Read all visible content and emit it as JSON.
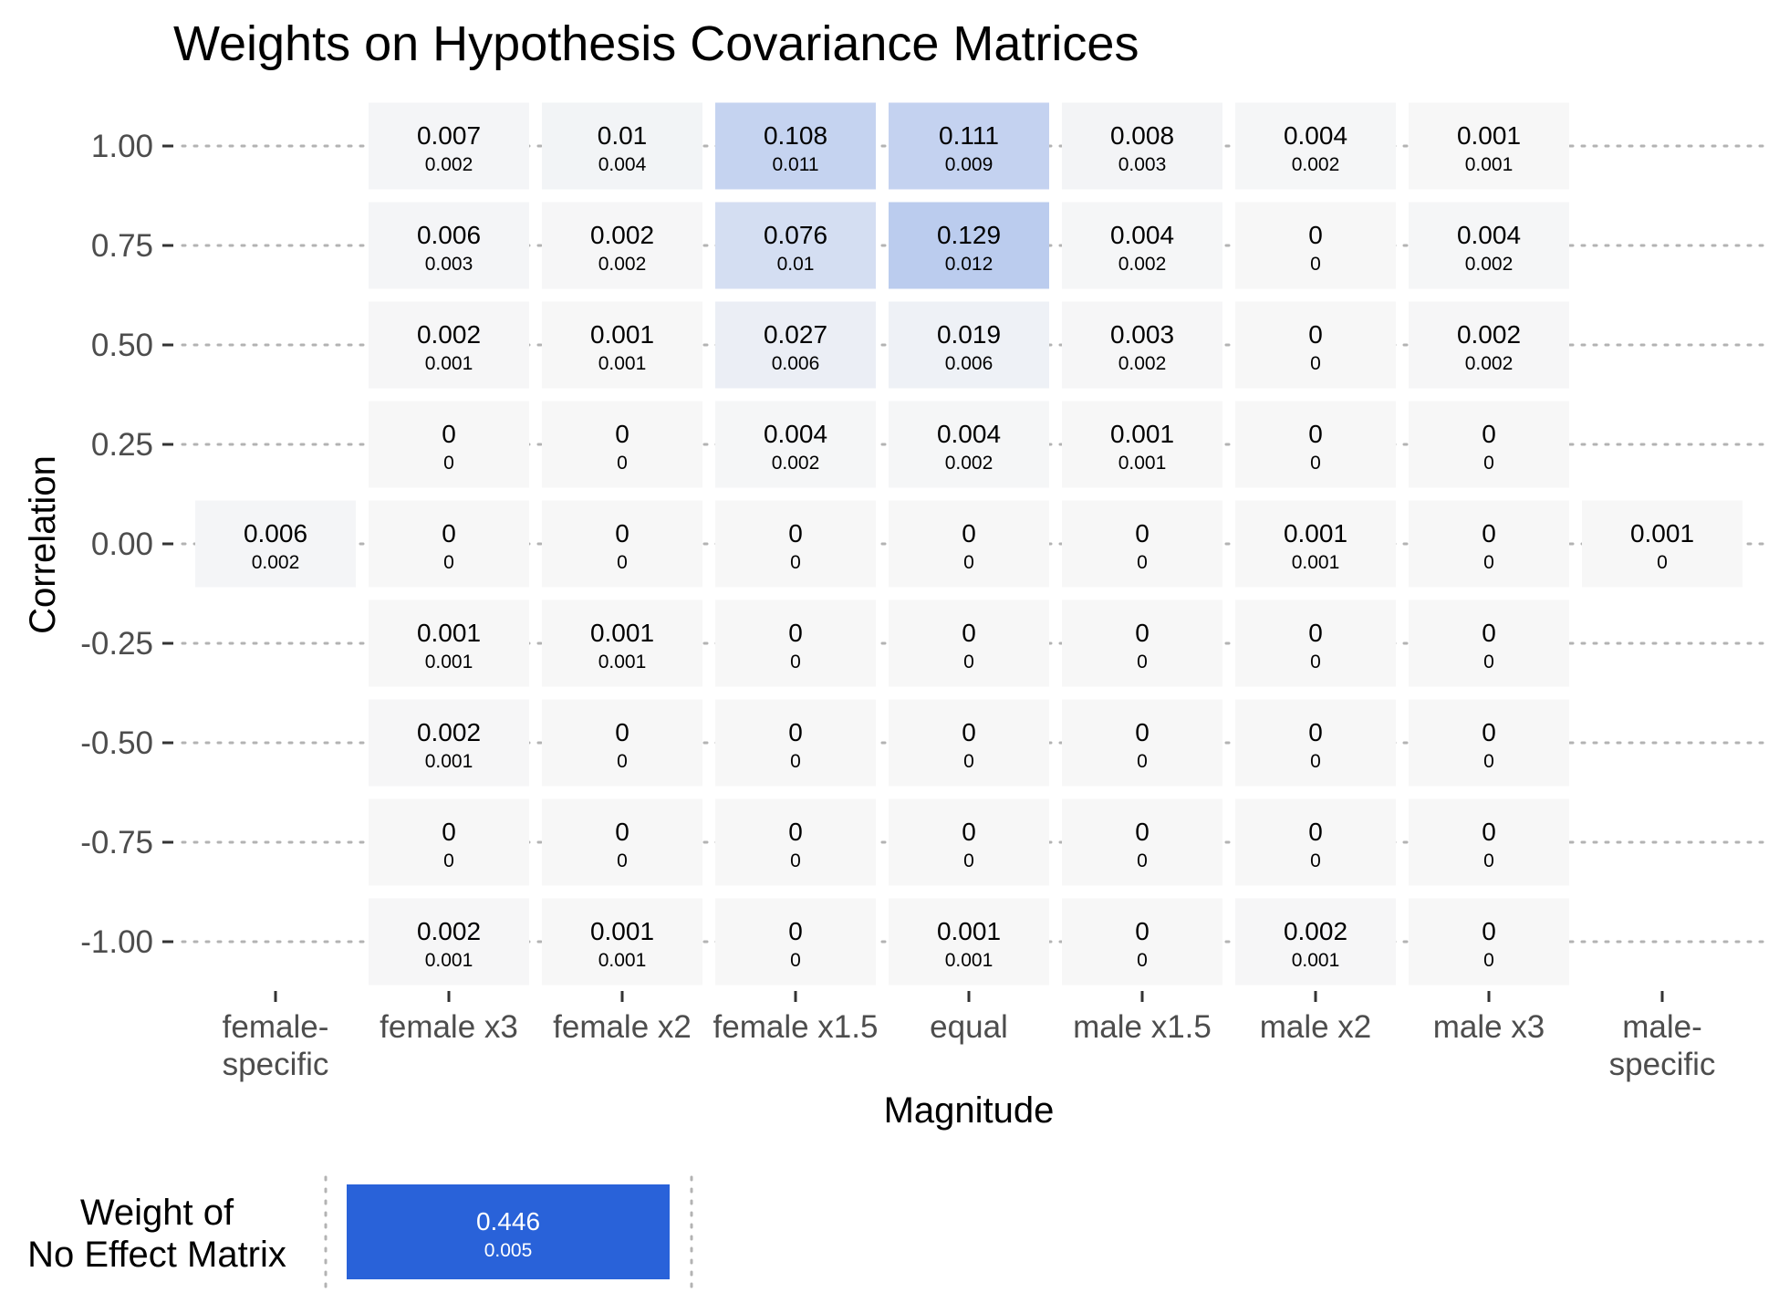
{
  "chart_data": {
    "type": "heatmap",
    "title": "Weights on Hypothesis Covariance Matrices",
    "xlabel": "Magnitude",
    "ylabel": "Correlation",
    "x_categories": [
      "female-\nspecific",
      "female x3",
      "female x2",
      "female x1.5",
      "equal",
      "male x1.5",
      "male x2",
      "male x3",
      "male-\nspecific"
    ],
    "y_categories": [
      "1.00",
      "0.75",
      "0.50",
      "0.25",
      "0.00",
      "-0.25",
      "-0.50",
      "-0.75",
      "-1.00"
    ],
    "cells": [
      {
        "x": "female-\nspecific",
        "y": "0.00",
        "mean": "0.006",
        "se": "0.002",
        "value": 0.006
      },
      {
        "x": "female x3",
        "y": "1.00",
        "mean": "0.007",
        "se": "0.002",
        "value": 0.007
      },
      {
        "x": "female x3",
        "y": "0.75",
        "mean": "0.006",
        "se": "0.003",
        "value": 0.006
      },
      {
        "x": "female x3",
        "y": "0.50",
        "mean": "0.002",
        "se": "0.001",
        "value": 0.002
      },
      {
        "x": "female x3",
        "y": "0.25",
        "mean": "0",
        "se": "0",
        "value": 0
      },
      {
        "x": "female x3",
        "y": "0.00",
        "mean": "0",
        "se": "0",
        "value": 0
      },
      {
        "x": "female x3",
        "y": "-0.25",
        "mean": "0.001",
        "se": "0.001",
        "value": 0.001
      },
      {
        "x": "female x3",
        "y": "-0.50",
        "mean": "0.002",
        "se": "0.001",
        "value": 0.002
      },
      {
        "x": "female x3",
        "y": "-0.75",
        "mean": "0",
        "se": "0",
        "value": 0
      },
      {
        "x": "female x3",
        "y": "-1.00",
        "mean": "0.002",
        "se": "0.001",
        "value": 0.002
      },
      {
        "x": "female x2",
        "y": "1.00",
        "mean": "0.01",
        "se": "0.004",
        "value": 0.01
      },
      {
        "x": "female x2",
        "y": "0.75",
        "mean": "0.002",
        "se": "0.002",
        "value": 0.002
      },
      {
        "x": "female x2",
        "y": "0.50",
        "mean": "0.001",
        "se": "0.001",
        "value": 0.001
      },
      {
        "x": "female x2",
        "y": "0.25",
        "mean": "0",
        "se": "0",
        "value": 0
      },
      {
        "x": "female x2",
        "y": "0.00",
        "mean": "0",
        "se": "0",
        "value": 0
      },
      {
        "x": "female x2",
        "y": "-0.25",
        "mean": "0.001",
        "se": "0.001",
        "value": 0.001
      },
      {
        "x": "female x2",
        "y": "-0.50",
        "mean": "0",
        "se": "0",
        "value": 0
      },
      {
        "x": "female x2",
        "y": "-0.75",
        "mean": "0",
        "se": "0",
        "value": 0
      },
      {
        "x": "female x2",
        "y": "-1.00",
        "mean": "0.001",
        "se": "0.001",
        "value": 0.001
      },
      {
        "x": "female x1.5",
        "y": "1.00",
        "mean": "0.108",
        "se": "0.011",
        "value": 0.108
      },
      {
        "x": "female x1.5",
        "y": "0.75",
        "mean": "0.076",
        "se": "0.01",
        "value": 0.076
      },
      {
        "x": "female x1.5",
        "y": "0.50",
        "mean": "0.027",
        "se": "0.006",
        "value": 0.027
      },
      {
        "x": "female x1.5",
        "y": "0.25",
        "mean": "0.004",
        "se": "0.002",
        "value": 0.004
      },
      {
        "x": "female x1.5",
        "y": "0.00",
        "mean": "0",
        "se": "0",
        "value": 0
      },
      {
        "x": "female x1.5",
        "y": "-0.25",
        "mean": "0",
        "se": "0",
        "value": 0
      },
      {
        "x": "female x1.5",
        "y": "-0.50",
        "mean": "0",
        "se": "0",
        "value": 0
      },
      {
        "x": "female x1.5",
        "y": "-0.75",
        "mean": "0",
        "se": "0",
        "value": 0
      },
      {
        "x": "female x1.5",
        "y": "-1.00",
        "mean": "0",
        "se": "0",
        "value": 0
      },
      {
        "x": "equal",
        "y": "1.00",
        "mean": "0.111",
        "se": "0.009",
        "value": 0.111
      },
      {
        "x": "equal",
        "y": "0.75",
        "mean": "0.129",
        "se": "0.012",
        "value": 0.129
      },
      {
        "x": "equal",
        "y": "0.50",
        "mean": "0.019",
        "se": "0.006",
        "value": 0.019
      },
      {
        "x": "equal",
        "y": "0.25",
        "mean": "0.004",
        "se": "0.002",
        "value": 0.004
      },
      {
        "x": "equal",
        "y": "0.00",
        "mean": "0",
        "se": "0",
        "value": 0
      },
      {
        "x": "equal",
        "y": "-0.25",
        "mean": "0",
        "se": "0",
        "value": 0
      },
      {
        "x": "equal",
        "y": "-0.50",
        "mean": "0",
        "se": "0",
        "value": 0
      },
      {
        "x": "equal",
        "y": "-0.75",
        "mean": "0",
        "se": "0",
        "value": 0
      },
      {
        "x": "equal",
        "y": "-1.00",
        "mean": "0.001",
        "se": "0.001",
        "value": 0.001
      },
      {
        "x": "male x1.5",
        "y": "1.00",
        "mean": "0.008",
        "se": "0.003",
        "value": 0.008
      },
      {
        "x": "male x1.5",
        "y": "0.75",
        "mean": "0.004",
        "se": "0.002",
        "value": 0.004
      },
      {
        "x": "male x1.5",
        "y": "0.50",
        "mean": "0.003",
        "se": "0.002",
        "value": 0.003
      },
      {
        "x": "male x1.5",
        "y": "0.25",
        "mean": "0.001",
        "se": "0.001",
        "value": 0.001
      },
      {
        "x": "male x1.5",
        "y": "0.00",
        "mean": "0",
        "se": "0",
        "value": 0
      },
      {
        "x": "male x1.5",
        "y": "-0.25",
        "mean": "0",
        "se": "0",
        "value": 0
      },
      {
        "x": "male x1.5",
        "y": "-0.50",
        "mean": "0",
        "se": "0",
        "value": 0
      },
      {
        "x": "male x1.5",
        "y": "-0.75",
        "mean": "0",
        "se": "0",
        "value": 0
      },
      {
        "x": "male x1.5",
        "y": "-1.00",
        "mean": "0",
        "se": "0",
        "value": 0
      },
      {
        "x": "male x2",
        "y": "1.00",
        "mean": "0.004",
        "se": "0.002",
        "value": 0.004
      },
      {
        "x": "male x2",
        "y": "0.75",
        "mean": "0",
        "se": "0",
        "value": 0
      },
      {
        "x": "male x2",
        "y": "0.50",
        "mean": "0",
        "se": "0",
        "value": 0
      },
      {
        "x": "male x2",
        "y": "0.25",
        "mean": "0",
        "se": "0",
        "value": 0
      },
      {
        "x": "male x2",
        "y": "0.00",
        "mean": "0.001",
        "se": "0.001",
        "value": 0.001
      },
      {
        "x": "male x2",
        "y": "-0.25",
        "mean": "0",
        "se": "0",
        "value": 0
      },
      {
        "x": "male x2",
        "y": "-0.50",
        "mean": "0",
        "se": "0",
        "value": 0
      },
      {
        "x": "male x2",
        "y": "-0.75",
        "mean": "0",
        "se": "0",
        "value": 0
      },
      {
        "x": "male x2",
        "y": "-1.00",
        "mean": "0.002",
        "se": "0.001",
        "value": 0.002
      },
      {
        "x": "male x3",
        "y": "1.00",
        "mean": "0.001",
        "se": "0.001",
        "value": 0.001
      },
      {
        "x": "male x3",
        "y": "0.75",
        "mean": "0.004",
        "se": "0.002",
        "value": 0.004
      },
      {
        "x": "male x3",
        "y": "0.50",
        "mean": "0.002",
        "se": "0.002",
        "value": 0.002
      },
      {
        "x": "male x3",
        "y": "0.25",
        "mean": "0",
        "se": "0",
        "value": 0
      },
      {
        "x": "male x3",
        "y": "0.00",
        "mean": "0",
        "se": "0",
        "value": 0
      },
      {
        "x": "male x3",
        "y": "-0.25",
        "mean": "0",
        "se": "0",
        "value": 0
      },
      {
        "x": "male x3",
        "y": "-0.50",
        "mean": "0",
        "se": "0",
        "value": 0
      },
      {
        "x": "male x3",
        "y": "-0.75",
        "mean": "0",
        "se": "0",
        "value": 0
      },
      {
        "x": "male x3",
        "y": "-1.00",
        "mean": "0",
        "se": "0",
        "value": 0
      },
      {
        "x": "male-\nspecific",
        "y": "0.00",
        "mean": "0.001",
        "se": "0",
        "value": 0.001
      }
    ],
    "color_scale": {
      "low": "#f7f7f7",
      "high": "#2962d9",
      "max": 0.446
    },
    "grid": "dotted horizontal",
    "legend": "none",
    "no_effect": {
      "label": "Weight of\nNo Effect Matrix",
      "mean": "0.446",
      "se": "0.005",
      "value": 0.446
    }
  }
}
